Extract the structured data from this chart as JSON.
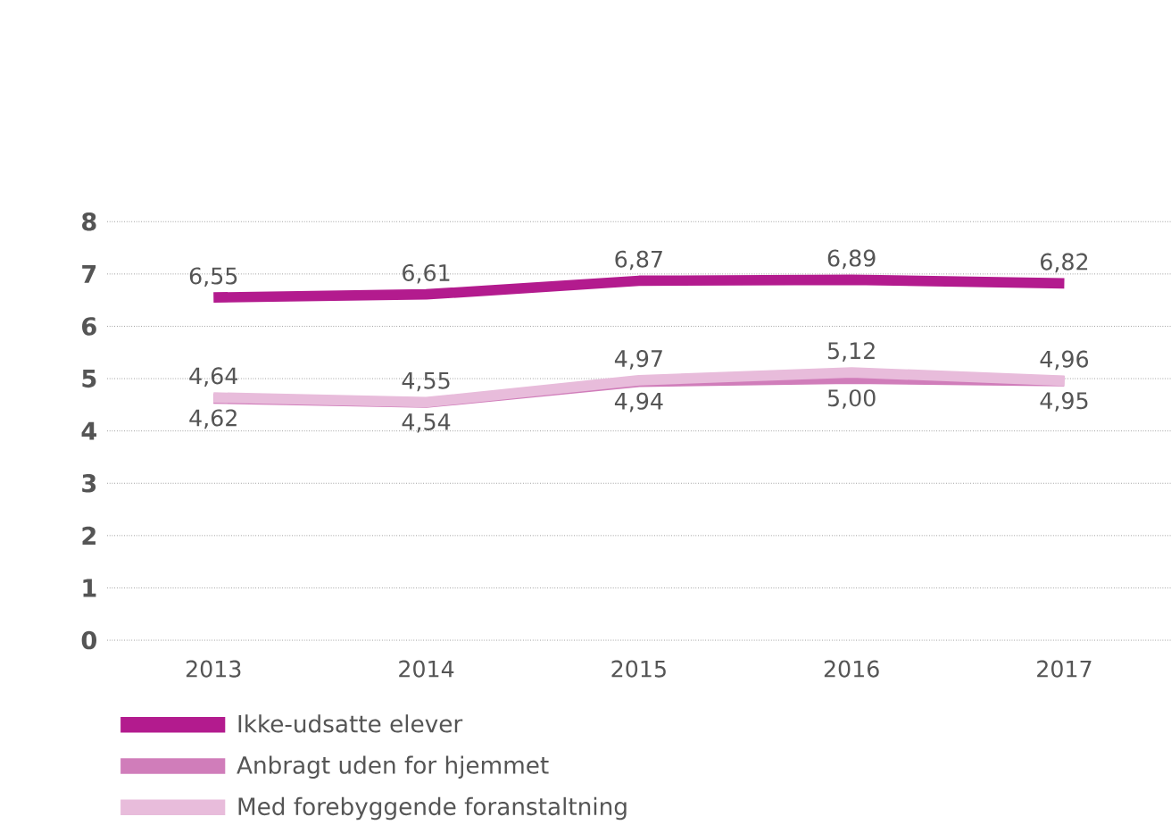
{
  "chart_data": {
    "type": "line",
    "categories": [
      "2013",
      "2014",
      "2015",
      "2016",
      "2017"
    ],
    "series": [
      {
        "name": "Ikke-udsatte elever",
        "color": "#b31b8e",
        "values": [
          6.55,
          6.61,
          6.87,
          6.89,
          6.82
        ],
        "value_labels": [
          "6,55",
          "6,61",
          "6,87",
          "6,89",
          "6,82"
        ]
      },
      {
        "name": "Anbragt uden for hjemmet",
        "color": "#d07dba",
        "values": [
          4.62,
          4.54,
          4.94,
          5.0,
          4.95
        ],
        "value_labels": [
          "4,62",
          "4,54",
          "4,94",
          "5,00",
          "4,95"
        ]
      },
      {
        "name": "Med forebyggende foranstaltning",
        "color": "#e8bcdb",
        "values": [
          4.64,
          4.55,
          4.97,
          5.12,
          4.96
        ],
        "value_labels": [
          "4,64",
          "4,55",
          "4,97",
          "5,12",
          "4,96"
        ]
      }
    ],
    "ylim": [
      0,
      8
    ],
    "yticks": [
      0,
      1,
      2,
      3,
      4,
      5,
      6,
      7,
      8
    ],
    "grid": "y",
    "legend": "bottom",
    "marker": "none",
    "line_style": "solid"
  }
}
